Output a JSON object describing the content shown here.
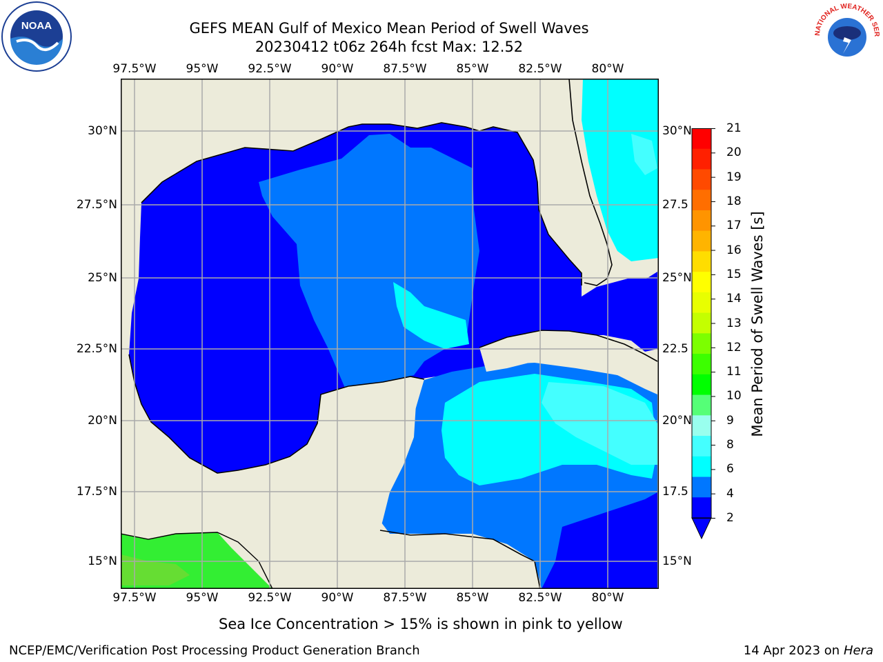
{
  "header": {
    "title_line1": "GEFS MEAN Gulf of Mexico Mean Period of Swell Waves",
    "title_line2": "20230412 t06z 264h fcst   Max: 12.52"
  },
  "logos": {
    "left": {
      "name": "noaa-logo",
      "text": "NOAA"
    },
    "right": {
      "name": "nws-logo",
      "text": "NATIONAL WEATHER SERVICE"
    }
  },
  "map": {
    "lat_ticks_left": [
      "30°N",
      "27.5°N",
      "25°N",
      "22.5°N",
      "20°N",
      "17.5°N",
      "15°N"
    ],
    "lat_ticks_right": [
      "30°N",
      "27.5",
      "25°N",
      "22.5",
      "20°N",
      "17.5",
      "15°N"
    ],
    "lon_ticks": [
      "97.5°W",
      "95°W",
      "92.5°W",
      "90°W",
      "87.5°W",
      "85°W",
      "82.5°W",
      "80°W"
    ],
    "colors": {
      "land": "#ecebda",
      "ocean_2_4": "#0000ff",
      "ocean_4_6": "#0077ff",
      "ocean_6_7": "#00ffff",
      "ocean_7_9": "#44ffff",
      "grid": "#aaaaaa"
    }
  },
  "colorbar": {
    "label": "Mean Period of Swell Waves [s]",
    "ticks": [
      "21",
      "20",
      "19",
      "18",
      "17",
      "16",
      "15",
      "14",
      "13",
      "12",
      "11",
      "10",
      "9",
      "8",
      "6",
      "4",
      "2"
    ],
    "colors": [
      "#ff0000",
      "#ff2000",
      "#ff4a00",
      "#ff6e00",
      "#ff9400",
      "#ffb400",
      "#ffdd00",
      "#ffff00",
      "#e8ff00",
      "#c4ff00",
      "#7cff00",
      "#3cff00",
      "#00ff00",
      "#55ff77",
      "#99ffee",
      "#44ffff",
      "#00ffff",
      "#0077ff",
      "#0000ff"
    ]
  },
  "caption": "Sea Ice Concentration > 15% is shown in pink to yellow",
  "footer": {
    "left": "NCEP/EMC/Verification Post Processing Product Generation Branch",
    "right_prefix": "14 Apr 2023 on ",
    "right_host": "Hera"
  }
}
